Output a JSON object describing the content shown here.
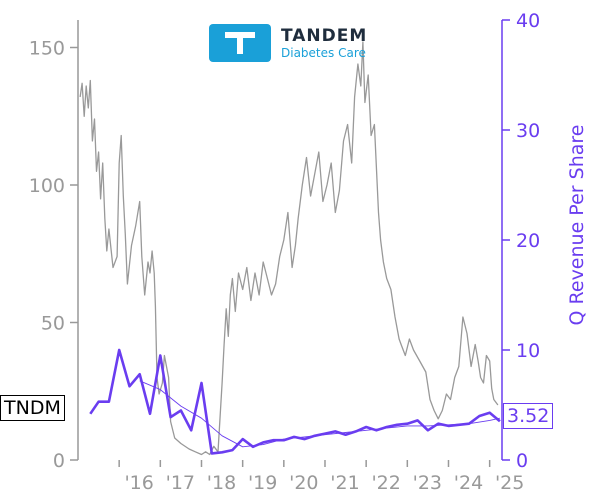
{
  "brand": {
    "name": "TANDEM",
    "subtitle": "Diabetes Care",
    "color": "#1aa0d8"
  },
  "ticker": "TNDM",
  "last_value_label": "3.52",
  "colors": {
    "price": "#999999",
    "revenue": "#6a3df0",
    "axis_left": "#999999",
    "axis_right": "#6a3df0"
  },
  "chart_data": {
    "type": "line",
    "title": "",
    "xlabel": "",
    "x_tick_labels": [
      "'16",
      "'17",
      "'18",
      "'19",
      "'20",
      "'21",
      "'22",
      "'23",
      "'24",
      "'25"
    ],
    "x_ticks": [
      2016,
      2017,
      2018,
      2019,
      2020,
      2021,
      2022,
      2023,
      2024,
      2025
    ],
    "xlim": [
      2015.0,
      2025.3
    ],
    "left_axis": {
      "label": "",
      "ylim": [
        0,
        160
      ],
      "ticks": [
        0,
        50,
        100,
        150
      ]
    },
    "right_axis": {
      "label": "Q Revenue Per Share",
      "ylim": [
        0,
        40
      ],
      "ticks": [
        0,
        10,
        20,
        30,
        40
      ]
    },
    "series": [
      {
        "axis": "left",
        "points": [
          [
            2015.05,
            132
          ],
          [
            2015.1,
            137
          ],
          [
            2015.15,
            125
          ],
          [
            2015.2,
            136
          ],
          [
            2015.25,
            128
          ],
          [
            2015.3,
            138
          ],
          [
            2015.35,
            116
          ],
          [
            2015.4,
            124
          ],
          [
            2015.45,
            105
          ],
          [
            2015.5,
            112
          ],
          [
            2015.55,
            95
          ],
          [
            2015.6,
            108
          ],
          [
            2015.65,
            88
          ],
          [
            2015.7,
            76
          ],
          [
            2015.75,
            84
          ],
          [
            2015.85,
            70
          ],
          [
            2015.95,
            74
          ],
          [
            2016.0,
            108
          ],
          [
            2016.05,
            118
          ],
          [
            2016.1,
            96
          ],
          [
            2016.15,
            82
          ],
          [
            2016.2,
            64
          ],
          [
            2016.3,
            78
          ],
          [
            2016.4,
            85
          ],
          [
            2016.5,
            94
          ],
          [
            2016.55,
            74
          ],
          [
            2016.62,
            60
          ],
          [
            2016.7,
            72
          ],
          [
            2016.75,
            68
          ],
          [
            2016.8,
            76
          ],
          [
            2016.85,
            68
          ],
          [
            2016.88,
            56
          ],
          [
            2016.92,
            30
          ],
          [
            2016.97,
            24
          ],
          [
            2017.05,
            28
          ],
          [
            2017.1,
            38
          ],
          [
            2017.2,
            30
          ],
          [
            2017.25,
            14
          ],
          [
            2017.35,
            8
          ],
          [
            2017.5,
            6
          ],
          [
            2017.7,
            4
          ],
          [
            2017.85,
            3
          ],
          [
            2018.0,
            2
          ],
          [
            2018.1,
            3
          ],
          [
            2018.2,
            2
          ],
          [
            2018.3,
            5
          ],
          [
            2018.4,
            3
          ],
          [
            2018.5,
            28
          ],
          [
            2018.55,
            42
          ],
          [
            2018.6,
            55
          ],
          [
            2018.65,
            45
          ],
          [
            2018.7,
            60
          ],
          [
            2018.75,
            66
          ],
          [
            2018.82,
            54
          ],
          [
            2018.9,
            68
          ],
          [
            2019.0,
            62
          ],
          [
            2019.1,
            70
          ],
          [
            2019.2,
            58
          ],
          [
            2019.3,
            68
          ],
          [
            2019.4,
            60
          ],
          [
            2019.5,
            72
          ],
          [
            2019.6,
            66
          ],
          [
            2019.7,
            60
          ],
          [
            2019.8,
            64
          ],
          [
            2019.9,
            74
          ],
          [
            2020.0,
            80
          ],
          [
            2020.1,
            90
          ],
          [
            2020.2,
            70
          ],
          [
            2020.28,
            78
          ],
          [
            2020.35,
            88
          ],
          [
            2020.45,
            100
          ],
          [
            2020.55,
            110
          ],
          [
            2020.65,
            96
          ],
          [
            2020.75,
            104
          ],
          [
            2020.85,
            112
          ],
          [
            2020.95,
            94
          ],
          [
            2021.05,
            100
          ],
          [
            2021.15,
            108
          ],
          [
            2021.25,
            90
          ],
          [
            2021.35,
            98
          ],
          [
            2021.45,
            116
          ],
          [
            2021.55,
            122
          ],
          [
            2021.65,
            108
          ],
          [
            2021.72,
            132
          ],
          [
            2021.8,
            144
          ],
          [
            2021.87,
            136
          ],
          [
            2021.92,
            152
          ],
          [
            2021.97,
            130
          ],
          [
            2022.05,
            140
          ],
          [
            2022.12,
            118
          ],
          [
            2022.2,
            122
          ],
          [
            2022.3,
            90
          ],
          [
            2022.35,
            80
          ],
          [
            2022.42,
            72
          ],
          [
            2022.5,
            66
          ],
          [
            2022.6,
            62
          ],
          [
            2022.7,
            52
          ],
          [
            2022.8,
            44
          ],
          [
            2022.85,
            42
          ],
          [
            2022.95,
            38
          ],
          [
            2023.05,
            44
          ],
          [
            2023.15,
            40
          ],
          [
            2023.3,
            36
          ],
          [
            2023.45,
            32
          ],
          [
            2023.55,
            22
          ],
          [
            2023.65,
            18
          ],
          [
            2023.75,
            15
          ],
          [
            2023.85,
            18
          ],
          [
            2023.95,
            24
          ],
          [
            2024.05,
            22
          ],
          [
            2024.15,
            30
          ],
          [
            2024.25,
            34
          ],
          [
            2024.35,
            52
          ],
          [
            2024.45,
            46
          ],
          [
            2024.55,
            34
          ],
          [
            2024.65,
            42
          ],
          [
            2024.72,
            36
          ],
          [
            2024.78,
            30
          ],
          [
            2024.85,
            28
          ],
          [
            2024.92,
            38
          ],
          [
            2025.0,
            36
          ],
          [
            2025.05,
            26
          ],
          [
            2025.1,
            22
          ],
          [
            2025.2,
            20
          ]
        ]
      },
      {
        "axis": "right",
        "points": [
          [
            2015.3,
            4.2
          ],
          [
            2015.5,
            5.3
          ],
          [
            2015.75,
            5.3
          ],
          [
            2016.0,
            10.0
          ],
          [
            2016.25,
            6.7
          ],
          [
            2016.5,
            7.8
          ],
          [
            2016.75,
            4.2
          ],
          [
            2017.0,
            9.5
          ],
          [
            2017.25,
            3.9
          ],
          [
            2017.5,
            4.5
          ],
          [
            2017.75,
            2.7
          ],
          [
            2018.0,
            7.0
          ],
          [
            2018.25,
            0.6
          ],
          [
            2018.5,
            0.7
          ],
          [
            2018.75,
            0.9
          ],
          [
            2019.0,
            1.9
          ],
          [
            2019.25,
            1.2
          ],
          [
            2019.5,
            1.6
          ],
          [
            2019.75,
            1.8
          ],
          [
            2020.0,
            1.8
          ],
          [
            2020.25,
            2.1
          ],
          [
            2020.5,
            1.9
          ],
          [
            2020.75,
            2.2
          ],
          [
            2021.0,
            2.4
          ],
          [
            2021.25,
            2.6
          ],
          [
            2021.5,
            2.3
          ],
          [
            2021.75,
            2.6
          ],
          [
            2022.0,
            3.0
          ],
          [
            2022.25,
            2.7
          ],
          [
            2022.5,
            3.0
          ],
          [
            2022.75,
            3.2
          ],
          [
            2023.0,
            3.3
          ],
          [
            2023.25,
            3.6
          ],
          [
            2023.5,
            2.7
          ],
          [
            2023.75,
            3.3
          ],
          [
            2024.0,
            3.1
          ],
          [
            2024.25,
            3.2
          ],
          [
            2024.5,
            3.3
          ],
          [
            2024.75,
            4.0
          ],
          [
            2025.0,
            4.3
          ],
          [
            2025.25,
            3.52
          ]
        ]
      },
      {
        "axis": "right",
        "points": [
          [
            2016.5,
            7.2
          ],
          [
            2017.0,
            6.4
          ],
          [
            2017.5,
            4.9
          ],
          [
            2018.0,
            3.8
          ],
          [
            2018.5,
            2.2
          ],
          [
            2019.0,
            1.2
          ],
          [
            2019.5,
            1.4
          ],
          [
            2020.0,
            1.9
          ],
          [
            2020.5,
            2.1
          ],
          [
            2021.0,
            2.3
          ],
          [
            2021.5,
            2.5
          ],
          [
            2022.0,
            2.7
          ],
          [
            2022.5,
            2.9
          ],
          [
            2023.0,
            3.1
          ],
          [
            2023.5,
            3.1
          ],
          [
            2024.0,
            3.2
          ],
          [
            2024.5,
            3.3
          ],
          [
            2025.0,
            3.6
          ],
          [
            2025.25,
            3.8
          ]
        ]
      }
    ],
    "last_value": 3.52
  }
}
